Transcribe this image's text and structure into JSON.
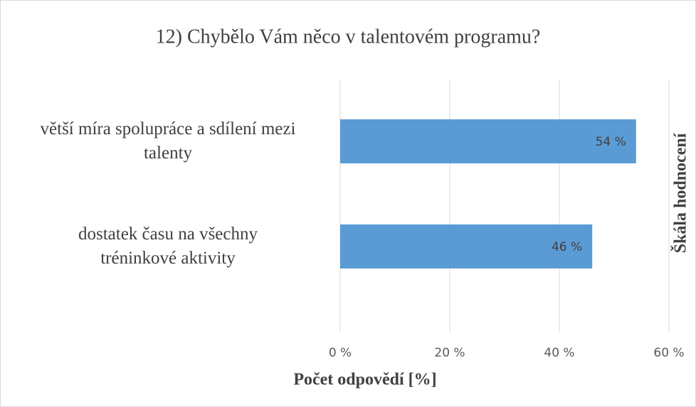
{
  "chart_data": {
    "type": "bar",
    "orientation": "horizontal",
    "title": "12) Chybělo Vám něco v talentovém programu?",
    "categories": [
      "větší míra spolupráce a sdílení mezi\ntalenty",
      "dostatek času na všechny\ntréninkové aktivity"
    ],
    "values": [
      54,
      46
    ],
    "value_labels": [
      "54 %",
      "46 %"
    ],
    "color": "#5b9bd5",
    "xlim": [
      0,
      60
    ],
    "xticks": [
      {
        "value": 0,
        "label": "0 %"
      },
      {
        "value": 20,
        "label": "20 %"
      },
      {
        "value": 40,
        "label": "40 %"
      },
      {
        "value": 60,
        "label": "60 %"
      }
    ],
    "xlabel": "Počet odpovědí [%]",
    "y2label": "Škála hodnocení",
    "grid": true
  }
}
